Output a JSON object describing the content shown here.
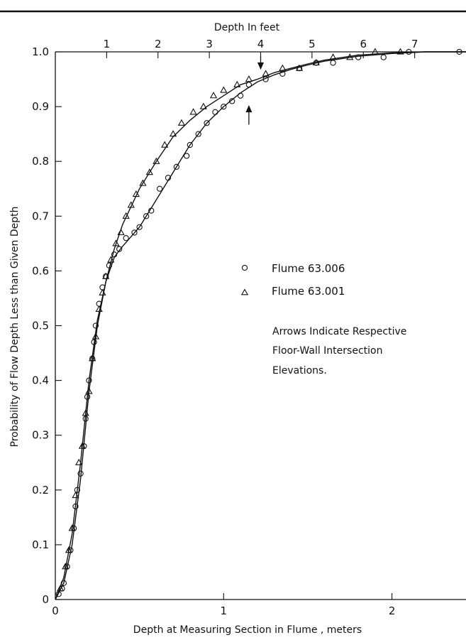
{
  "chart_data": {
    "type": "scatter",
    "title": "",
    "xlabel": "Depth at Measuring Section in Flume , meters",
    "x2label": "Depth In feet",
    "ylabel": "Probability of Flow Depth Less than Given Depth",
    "xlim": [
      0,
      2.44
    ],
    "x2lim": [
      0,
      8.0
    ],
    "ylim": [
      0,
      1.0
    ],
    "x_ticks": [
      0,
      1,
      2
    ],
    "x_tick_labels": [
      "0",
      "1",
      "2"
    ],
    "x2_ticks": [
      1,
      2,
      3,
      4,
      5,
      6,
      7
    ],
    "x2_tick_labels": [
      "1",
      "2",
      "3",
      "4",
      "5",
      "6",
      "7"
    ],
    "y_ticks": [
      0,
      0.1,
      0.2,
      0.3,
      0.4,
      0.5,
      0.6,
      0.7,
      0.8,
      0.9,
      1.0
    ],
    "y_tick_labels": [
      "0",
      "0.1",
      "0.2",
      "0.3",
      "0.4",
      "0.5",
      "0.6",
      "0.7",
      "0.8",
      "0.9",
      "1.0"
    ],
    "grid": false,
    "legend_position": "right-center",
    "series": [
      {
        "name": "Flume 63.006",
        "marker": "circle",
        "points": [
          [
            0.02,
            0.01
          ],
          [
            0.04,
            0.02
          ],
          [
            0.05,
            0.03
          ],
          [
            0.07,
            0.06
          ],
          [
            0.09,
            0.09
          ],
          [
            0.11,
            0.13
          ],
          [
            0.12,
            0.17
          ],
          [
            0.13,
            0.2
          ],
          [
            0.15,
            0.23
          ],
          [
            0.17,
            0.28
          ],
          [
            0.18,
            0.33
          ],
          [
            0.19,
            0.37
          ],
          [
            0.2,
            0.4
          ],
          [
            0.22,
            0.44
          ],
          [
            0.23,
            0.47
          ],
          [
            0.24,
            0.5
          ],
          [
            0.26,
            0.54
          ],
          [
            0.28,
            0.57
          ],
          [
            0.3,
            0.59
          ],
          [
            0.32,
            0.61
          ],
          [
            0.35,
            0.63
          ],
          [
            0.38,
            0.64
          ],
          [
            0.42,
            0.66
          ],
          [
            0.47,
            0.67
          ],
          [
            0.5,
            0.68
          ],
          [
            0.54,
            0.7
          ],
          [
            0.57,
            0.71
          ],
          [
            0.62,
            0.75
          ],
          [
            0.67,
            0.77
          ],
          [
            0.72,
            0.79
          ],
          [
            0.78,
            0.81
          ],
          [
            0.8,
            0.83
          ],
          [
            0.85,
            0.85
          ],
          [
            0.9,
            0.87
          ],
          [
            0.95,
            0.89
          ],
          [
            1.0,
            0.9
          ],
          [
            1.05,
            0.91
          ],
          [
            1.1,
            0.92
          ],
          [
            1.15,
            0.94
          ],
          [
            1.25,
            0.95
          ],
          [
            1.35,
            0.96
          ],
          [
            1.45,
            0.97
          ],
          [
            1.55,
            0.98
          ],
          [
            1.65,
            0.98
          ],
          [
            1.8,
            0.99
          ],
          [
            1.95,
            0.99
          ],
          [
            2.1,
            1.0
          ],
          [
            2.4,
            1.0
          ]
        ]
      },
      {
        "name": "Flume 63.001",
        "marker": "triangle",
        "points": [
          [
            0.03,
            0.02
          ],
          [
            0.06,
            0.06
          ],
          [
            0.08,
            0.09
          ],
          [
            0.1,
            0.13
          ],
          [
            0.12,
            0.19
          ],
          [
            0.14,
            0.25
          ],
          [
            0.16,
            0.28
          ],
          [
            0.18,
            0.34
          ],
          [
            0.2,
            0.38
          ],
          [
            0.22,
            0.44
          ],
          [
            0.24,
            0.48
          ],
          [
            0.26,
            0.53
          ],
          [
            0.28,
            0.56
          ],
          [
            0.3,
            0.59
          ],
          [
            0.33,
            0.62
          ],
          [
            0.36,
            0.65
          ],
          [
            0.39,
            0.67
          ],
          [
            0.42,
            0.7
          ],
          [
            0.45,
            0.72
          ],
          [
            0.48,
            0.74
          ],
          [
            0.52,
            0.76
          ],
          [
            0.56,
            0.78
          ],
          [
            0.6,
            0.8
          ],
          [
            0.65,
            0.83
          ],
          [
            0.7,
            0.85
          ],
          [
            0.75,
            0.87
          ],
          [
            0.82,
            0.89
          ],
          [
            0.88,
            0.9
          ],
          [
            0.94,
            0.92
          ],
          [
            1.0,
            0.93
          ],
          [
            1.08,
            0.94
          ],
          [
            1.15,
            0.95
          ],
          [
            1.25,
            0.96
          ],
          [
            1.35,
            0.97
          ],
          [
            1.45,
            0.97
          ],
          [
            1.55,
            0.98
          ],
          [
            1.65,
            0.99
          ],
          [
            1.75,
            0.99
          ],
          [
            1.9,
            1.0
          ],
          [
            2.05,
            1.0
          ]
        ]
      }
    ],
    "curves": [
      {
        "series": "Flume 63.006",
        "points": [
          [
            0,
            0
          ],
          [
            0.05,
            0.03
          ],
          [
            0.1,
            0.1
          ],
          [
            0.15,
            0.22
          ],
          [
            0.2,
            0.38
          ],
          [
            0.25,
            0.5
          ],
          [
            0.3,
            0.58
          ],
          [
            0.35,
            0.625
          ],
          [
            0.4,
            0.645
          ],
          [
            0.5,
            0.68
          ],
          [
            0.6,
            0.73
          ],
          [
            0.7,
            0.78
          ],
          [
            0.8,
            0.83
          ],
          [
            0.9,
            0.87
          ],
          [
            1.0,
            0.9
          ],
          [
            1.1,
            0.925
          ],
          [
            1.2,
            0.945
          ],
          [
            1.3,
            0.958
          ],
          [
            1.4,
            0.968
          ],
          [
            1.5,
            0.976
          ],
          [
            1.6,
            0.983
          ],
          [
            1.8,
            0.992
          ],
          [
            2.0,
            0.997
          ],
          [
            2.2,
            1.0
          ],
          [
            2.44,
            1.0
          ]
        ]
      },
      {
        "series": "Flume 63.001",
        "points": [
          [
            0,
            0
          ],
          [
            0.05,
            0.04
          ],
          [
            0.1,
            0.12
          ],
          [
            0.15,
            0.25
          ],
          [
            0.2,
            0.4
          ],
          [
            0.25,
            0.51
          ],
          [
            0.3,
            0.58
          ],
          [
            0.35,
            0.64
          ],
          [
            0.4,
            0.685
          ],
          [
            0.5,
            0.75
          ],
          [
            0.6,
            0.8
          ],
          [
            0.7,
            0.845
          ],
          [
            0.8,
            0.875
          ],
          [
            0.9,
            0.9
          ],
          [
            1.0,
            0.92
          ],
          [
            1.1,
            0.94
          ],
          [
            1.2,
            0.95
          ],
          [
            1.3,
            0.962
          ],
          [
            1.4,
            0.97
          ],
          [
            1.5,
            0.978
          ],
          [
            1.6,
            0.985
          ],
          [
            1.8,
            0.994
          ],
          [
            2.0,
            0.998
          ],
          [
            2.2,
            1.0
          ],
          [
            2.44,
            1.0
          ]
        ]
      }
    ],
    "annotations": {
      "legend_items": [
        {
          "marker": "circle",
          "label": "Flume 63.006"
        },
        {
          "marker": "triangle",
          "label": "Flume 63.001"
        }
      ],
      "note_lines": [
        "Arrows Indicate Respective",
        "Floor-Wall Intersection",
        "Elevations."
      ],
      "arrows": [
        {
          "x": 1.22,
          "y": 0.985,
          "direction": "down"
        },
        {
          "x": 1.15,
          "y": 0.88,
          "direction": "up"
        }
      ]
    }
  }
}
